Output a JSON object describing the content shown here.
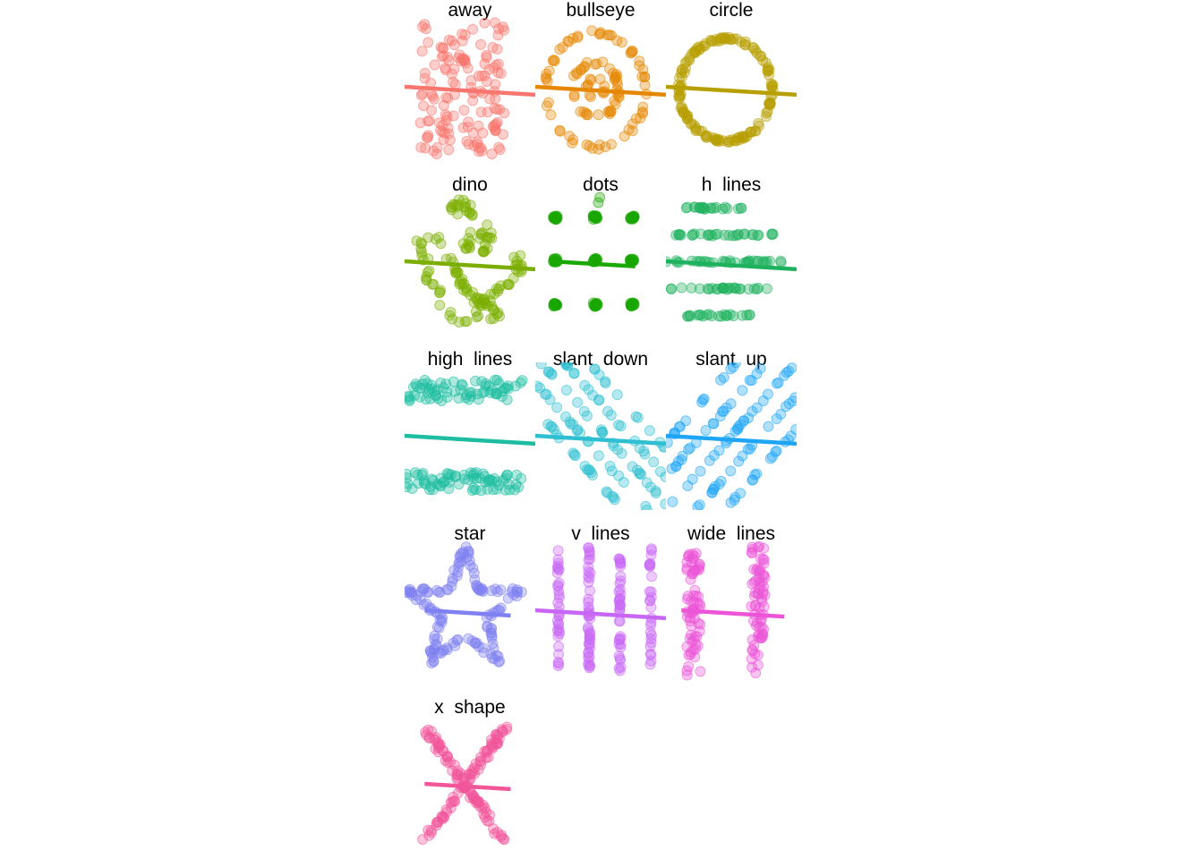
{
  "chart_data": {
    "type": "scatter",
    "layout": "faceted small multiples, 3 columns, 5 rows, no axes, no gridlines, no legend",
    "overlay": "linear regression line per panel",
    "point_opacity": 0.35,
    "xlim": [
      15,
      100
    ],
    "ylim": [
      -5,
      105
    ],
    "panels": [
      {
        "name": "away",
        "color": "#F8766D",
        "shape": "away",
        "fit": [
          [
            15,
            50.3
          ],
          [
            100,
            44.4
          ]
        ]
      },
      {
        "name": "bullseye",
        "color": "#E58700",
        "shape": "bullseye",
        "fit": [
          [
            15,
            50.3
          ],
          [
            100,
            44.4
          ]
        ]
      },
      {
        "name": "circle",
        "color": "#B79F00",
        "shape": "circle",
        "fit": [
          [
            15,
            50.3
          ],
          [
            100,
            44.4
          ]
        ]
      },
      {
        "name": "dino",
        "color": "#7CAE00",
        "shape": "dino",
        "fit": [
          [
            15,
            50.3
          ],
          [
            100,
            44.4
          ]
        ]
      },
      {
        "name": "dots",
        "color": "#19A700",
        "shape": "dots",
        "fit": [
          [
            25,
            50.3
          ],
          [
            80,
            46.6
          ]
        ]
      },
      {
        "name": "h  lines",
        "color": "#1FB25E",
        "shape": "h_lines",
        "fit": [
          [
            15,
            50.3
          ],
          [
            100,
            44.4
          ]
        ]
      },
      {
        "name": "high  lines",
        "color": "#1CBDA0",
        "shape": "high_lines",
        "fit": [
          [
            15,
            50.3
          ],
          [
            100,
            44.4
          ]
        ]
      },
      {
        "name": "slant  down",
        "color": "#2EBFD2",
        "shape": "slant_down",
        "fit": [
          [
            15,
            50.3
          ],
          [
            100,
            44.4
          ]
        ]
      },
      {
        "name": "slant  up",
        "color": "#1FA5F5",
        "shape": "slant_up",
        "fit": [
          [
            15,
            50.3
          ],
          [
            100,
            44.4
          ]
        ]
      },
      {
        "name": "star",
        "color": "#7F80F1",
        "shape": "star",
        "fit": [
          [
            28,
            50.3
          ],
          [
            84,
            46.4
          ]
        ]
      },
      {
        "name": "v  lines",
        "color": "#C867F5",
        "shape": "v_lines",
        "fit": [
          [
            15,
            50.3
          ],
          [
            100,
            44.4
          ]
        ]
      },
      {
        "name": "wide  lines",
        "color": "#EC55D8",
        "shape": "wide_lines",
        "fit": [
          [
            25,
            50.3
          ],
          [
            92,
            45.6
          ]
        ]
      },
      {
        "name": "x  shape",
        "color": "#F2559A",
        "shape": "x_shape",
        "fit": [
          [
            28,
            50.3
          ],
          [
            84,
            46.4
          ]
        ]
      }
    ]
  }
}
